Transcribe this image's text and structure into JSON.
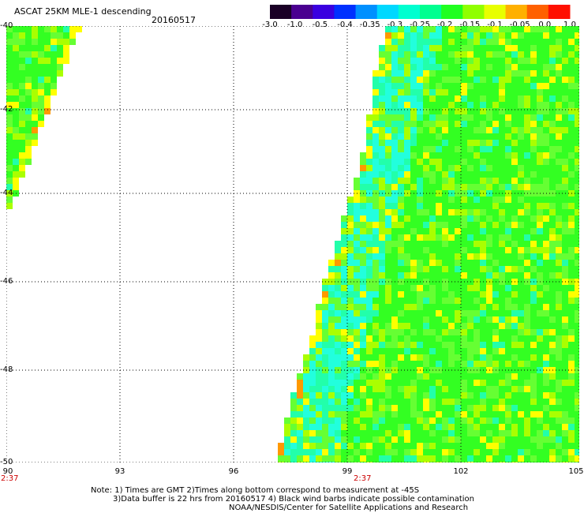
{
  "title": "ASCAT 25KM MLE-1 descending",
  "date": "20160517",
  "colorbar": {
    "ticks": [
      "-3.0",
      "-1.0",
      "-0.5",
      "-0.4",
      "-0.35",
      "-0.3",
      "-0.25",
      "-0.2",
      "-0.15",
      "-0.1",
      "-0.05",
      "0.0",
      "1.0"
    ],
    "colors": [
      "#1a0026",
      "#4a0090",
      "#3a00e0",
      "#0030ff",
      "#0090ff",
      "#00d8ff",
      "#00ffd0",
      "#00ff90",
      "#20ff20",
      "#90ff00",
      "#e8ff00",
      "#ffb000",
      "#ff6000",
      "#ff1000"
    ]
  },
  "lat_labels": [
    "-40",
    "-42",
    "-44",
    "-46",
    "-48",
    "-50"
  ],
  "lon_labels": [
    "90",
    "93",
    "96",
    "99",
    "102",
    "105"
  ],
  "time_labels": [
    "2:37",
    "2:37"
  ],
  "note": {
    "line1": "Note: 1) Times are GMT 2)Times along bottom correspond to measurement at -45S",
    "line2": "3)Data buffer is 22 hrs from 20160517 4) Black wind barbs indicate possible contamination",
    "line3": "NOAA/NESDIS/Center for Satellite Applications and Research"
  },
  "map_palette": {
    "green": "#33ff22",
    "light_green": "#66ff33",
    "mint": "#22ffaa",
    "cyan": "#22ffdd",
    "yellow_green": "#aaff00",
    "yellow": "#ffff00",
    "orange": "#ff9900",
    "red_orange": "#ff5500"
  }
}
